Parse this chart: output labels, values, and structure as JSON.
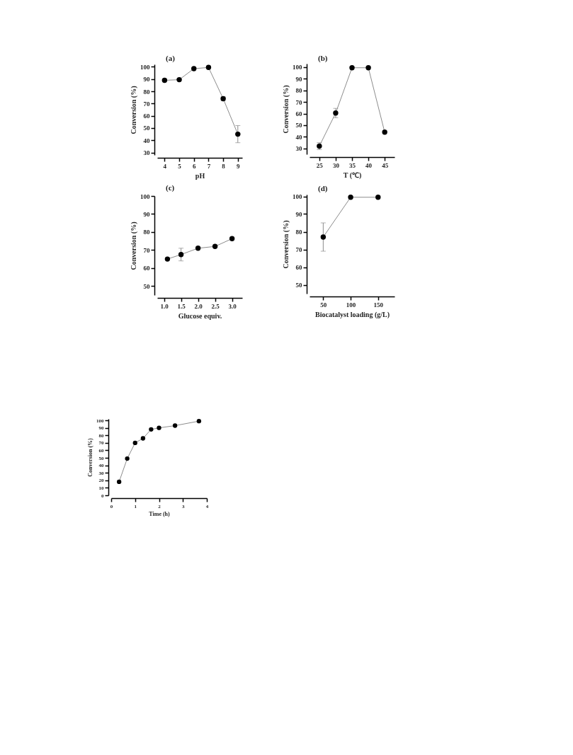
{
  "chart_data": [
    {
      "type": "line",
      "title": "(a)",
      "xlabel": "pH",
      "ylabel": "Conversion (%)",
      "x": [
        4,
        5,
        6,
        7,
        8,
        9
      ],
      "series": [
        {
          "color": "#000000",
          "values": [
            89,
            89.5,
            98.5,
            99.5,
            74,
            45
          ],
          "errors": [
            1,
            null,
            null,
            null,
            1.5,
            [
              38,
              52
            ]
          ]
        }
      ],
      "xlim": [
        3.5,
        9.3
      ],
      "xticks": [
        4,
        5,
        6,
        7,
        8,
        9
      ],
      "ylim": [
        28,
        102
      ],
      "yticks": [
        30,
        40,
        50,
        60,
        70,
        80,
        90,
        100
      ],
      "marker": "circle",
      "line_style": "solid"
    },
    {
      "type": "line",
      "title": "(b)",
      "xlabel": "T (℃)",
      "ylabel": "Conversion (%)",
      "x": [
        25,
        30,
        35,
        40,
        45
      ],
      "series": [
        {
          "color": "#000000",
          "values": [
            32,
            60.5,
            99.5,
            99.5,
            44
          ],
          "errors": [
            3,
            4,
            null,
            null,
            null
          ]
        }
      ],
      "xlim": [
        22,
        48
      ],
      "xticks": [
        25,
        30,
        35,
        40,
        45
      ],
      "ylim": [
        25,
        103
      ],
      "yticks": [
        30,
        40,
        50,
        60,
        70,
        80,
        90,
        100
      ],
      "marker": "circle",
      "line_style": "solid"
    },
    {
      "type": "line",
      "title": "(c)",
      "xlabel": "Glucose equiv.",
      "ylabel": "Conversion (%)",
      "x": [
        1.1,
        1.5,
        2.0,
        2.5,
        3.0
      ],
      "series": [
        {
          "color": "#000000",
          "values": [
            65,
            67.5,
            71,
            72,
            76.3
          ],
          "errors": [
            null,
            3.5,
            null,
            null,
            null
          ]
        }
      ],
      "xlim": [
        0.8,
        3.3
      ],
      "xticks": [
        {
          "value": 1,
          "label": "1.0"
        },
        {
          "value": 1.5,
          "label": "1.5"
        },
        {
          "value": 2,
          "label": "2.0"
        },
        {
          "value": 2.5,
          "label": "2.5"
        },
        {
          "value": 3,
          "label": "3.0"
        }
      ],
      "ylim": [
        45,
        100
      ],
      "yticks": [
        50,
        60,
        70,
        80,
        90,
        100
      ],
      "marker": "circle",
      "line_style": "solid"
    },
    {
      "type": "line",
      "title": "(d)",
      "xlabel": "Biocatalyst loading (g/L)",
      "ylabel": "Conversion (%)",
      "x": [
        50,
        100,
        150
      ],
      "series": [
        {
          "color": "#000000",
          "values": [
            77,
            99.5,
            99.5
          ],
          "errors": [
            8,
            null,
            null
          ]
        }
      ],
      "xlim": [
        25,
        180
      ],
      "xticks": [
        50,
        100,
        150
      ],
      "ylim": [
        45,
        101
      ],
      "yticks": [
        50,
        60,
        70,
        80,
        90,
        100
      ],
      "marker": "circle",
      "line_style": "solid"
    },
    {
      "type": "line",
      "xlabel": "Time (h)",
      "ylabel": "Conversion  (%)",
      "x": [
        0.33,
        0.67,
        1,
        1.33,
        1.67,
        2,
        2.67,
        3.67
      ],
      "series": [
        {
          "color": "#000000",
          "values": [
            18,
            49,
            70,
            76,
            88,
            90,
            93,
            99
          ]
        }
      ],
      "xlim": [
        0,
        4
      ],
      "xticks": [
        0,
        1,
        2,
        3,
        4
      ],
      "ylim": [
        0,
        102
      ],
      "yticks": [
        0,
        10,
        20,
        30,
        40,
        50,
        60,
        70,
        80,
        90,
        100
      ],
      "marker": "circle",
      "line_style": "solid"
    }
  ]
}
